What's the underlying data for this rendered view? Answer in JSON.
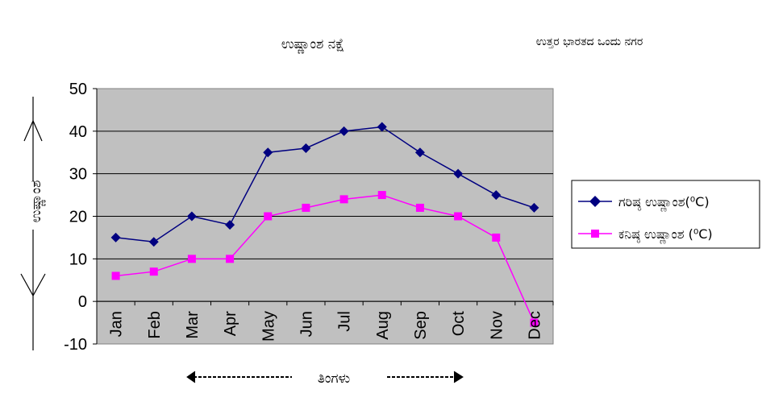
{
  "chart_data": {
    "type": "line",
    "title": "ಉಷ್ಣಾಂಶ ನಕ್ಷೆ",
    "subtitle": "ಉತ್ತರ ಭಾರತದ ಒಂದು ನಗರ",
    "xlabel": "ತಿಂಗಳು",
    "ylabel": "ಉಷ್ಣಾಂಶ",
    "categories": [
      "Jan",
      "Feb",
      "Mar",
      "Apr",
      "May",
      "Jun",
      "Jul",
      "Aug",
      "Sep",
      "Oct",
      "Nov",
      "Dec"
    ],
    "ylim": [
      -10,
      50
    ],
    "yticks": [
      "50",
      "40",
      "30",
      "20",
      "10",
      "0",
      "-10"
    ],
    "grid": true,
    "legend_position": "right",
    "series": [
      {
        "name": "ಗರಿಷ್ಠ ಉಷ್ಣಾಂಶ(⁰C)",
        "color": "#000080",
        "marker": "diamond",
        "values": [
          15,
          14,
          20,
          18,
          35,
          36,
          40,
          41,
          35,
          30,
          25,
          22
        ]
      },
      {
        "name": "ಕನಿಷ್ಠ ಉಷ್ಣಾಂಶ (⁰C)",
        "color": "#FF00FF",
        "marker": "square",
        "values": [
          6,
          7,
          10,
          10,
          20,
          22,
          24,
          25,
          22,
          20,
          15,
          -5
        ]
      }
    ],
    "plot_background": "#C0C0C0"
  }
}
